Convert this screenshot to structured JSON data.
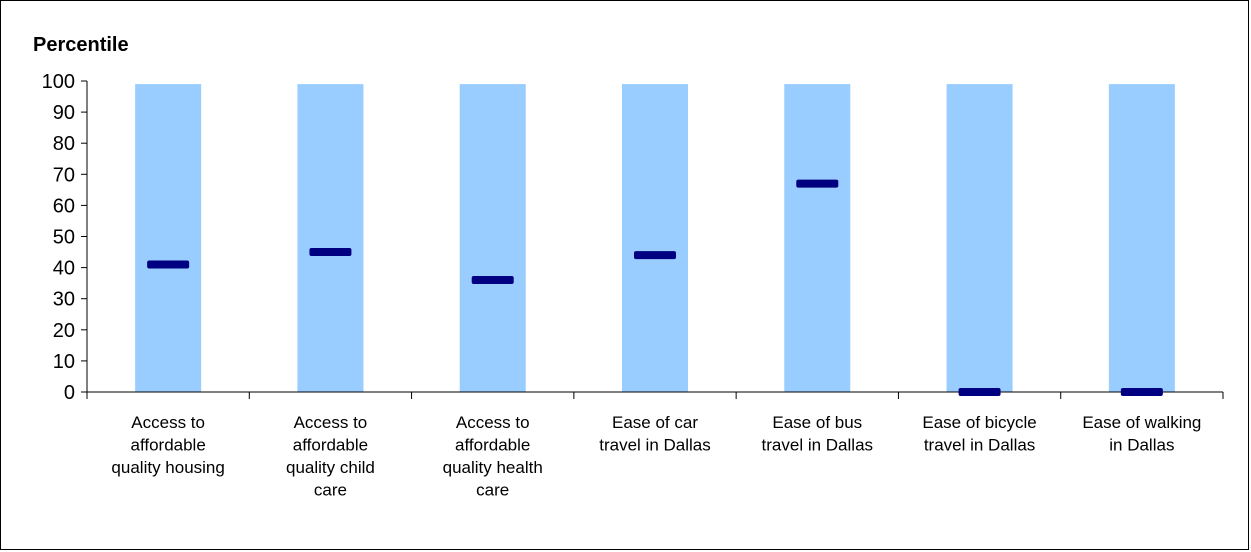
{
  "chart_data": {
    "type": "bar",
    "title": "Percentile",
    "xlabel": "",
    "ylabel": "",
    "ylim": [
      0,
      100
    ],
    "yticks": [
      0,
      10,
      20,
      30,
      40,
      50,
      60,
      70,
      80,
      90,
      100
    ],
    "grid": false,
    "legend": "none",
    "categories": [
      [
        "Access to",
        "affordable",
        "quality housing"
      ],
      [
        "Access to",
        "affordable",
        "quality child",
        "care"
      ],
      [
        "Access to",
        "affordable",
        "quality health",
        "care"
      ],
      [
        "Ease of car",
        "travel in Dallas"
      ],
      [
        "Ease of bus",
        "travel in Dallas"
      ],
      [
        "Ease of bicycle",
        "travel in Dallas"
      ],
      [
        "Ease of walking",
        "in Dallas"
      ]
    ],
    "series": [
      {
        "values": [
          99,
          99,
          99,
          99,
          99,
          99,
          99
        ]
      },
      {
        "values": [
          41,
          45,
          36,
          44,
          67,
          0,
          0
        ]
      }
    ],
    "colors": {
      "range_bar": "#99ccff",
      "marker": "#000080",
      "axis": "#000000"
    }
  }
}
